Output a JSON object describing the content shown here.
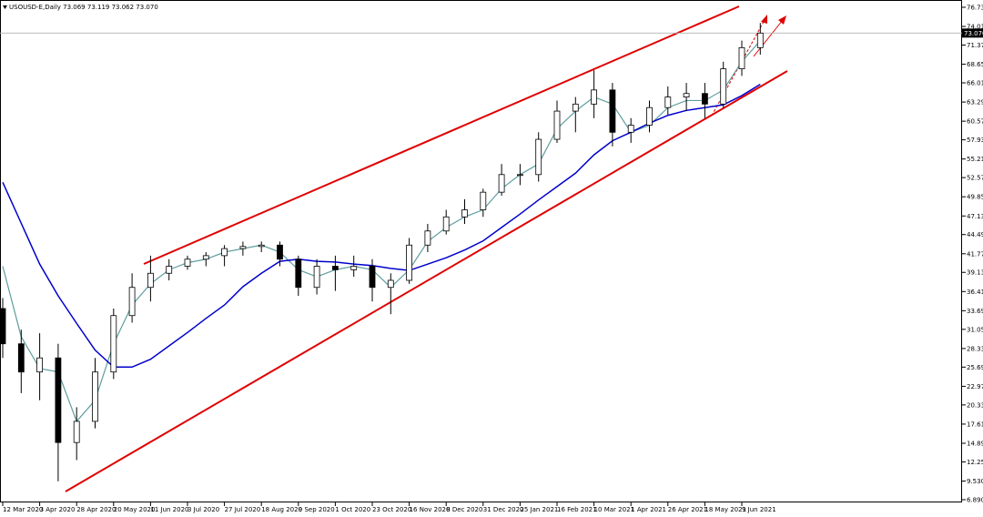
{
  "chart_data": {
    "type": "candlestick",
    "title": "USOUSD-E,Daily  73.069 73.119 73.062 73.070",
    "categories": [
      "12 Mar 2020",
      null,
      "3 Apr 2020",
      null,
      "28 Apr 2020",
      null,
      "20 May 2020",
      null,
      "11 Jun 2020",
      null,
      "3 Jul 2020",
      null,
      "27 Jul 2020",
      null,
      "18 Aug 2020",
      null,
      "9 Sep 2020",
      null,
      "1 Oct 2020",
      null,
      "23 Oct 2020",
      null,
      "16 Nov 2020",
      null,
      "8 Dec 2020",
      null,
      "31 Dec 2020",
      null,
      "25 Jan 2021",
      null,
      "16 Feb 2021",
      null,
      "10 Mar 2021",
      null,
      "1 Apr 2021",
      null,
      "26 Apr 2021",
      null,
      "18 May 2021",
      null,
      "9 Jun 2021",
      null
    ],
    "open": [
      34,
      29,
      25,
      27,
      15,
      18,
      25,
      33,
      37,
      39,
      40,
      41,
      41.5,
      42.5,
      42.8,
      43,
      41,
      37,
      40,
      39.5,
      40,
      37,
      38,
      43,
      45,
      47,
      48,
      50.5,
      53,
      53,
      58,
      62,
      63,
      65,
      59,
      60,
      62.5,
      64,
      64.5,
      63,
      68,
      71
    ],
    "high": [
      35.5,
      31,
      30.5,
      29,
      20,
      27,
      34,
      39,
      41.5,
      41,
      41.5,
      42,
      43,
      43.5,
      43.5,
      43.5,
      41.5,
      41,
      41.5,
      41.5,
      41,
      39,
      44,
      46,
      48,
      49.5,
      51,
      54.5,
      54.5,
      59,
      63.5,
      64,
      67.8,
      66,
      61,
      63.5,
      65.5,
      66,
      66,
      69,
      72,
      74.5
    ],
    "low": [
      27,
      22,
      21,
      9.5,
      12.5,
      17,
      24,
      32,
      35,
      38,
      39.5,
      40,
      40,
      41.5,
      42,
      40,
      35.8,
      36,
      36.5,
      38.5,
      35,
      33.2,
      37.5,
      42,
      44.5,
      46,
      47,
      50,
      51.5,
      52,
      57.5,
      59,
      61,
      57,
      57.5,
      59,
      61.5,
      62,
      61,
      62.5,
      67,
      70
    ],
    "close": [
      29,
      25,
      27,
      15,
      18,
      25,
      33,
      37,
      39,
      40,
      41,
      41.5,
      42.5,
      42.8,
      43,
      41,
      37,
      40,
      39.5,
      40,
      37,
      38,
      43,
      45,
      47,
      48,
      50.5,
      53,
      53,
      58,
      62,
      63,
      65,
      59,
      60,
      62.5,
      64,
      64.5,
      63,
      68,
      71,
      73.07
    ],
    "up_color": "#ffffff",
    "down_color": "#000000",
    "candle_color": "#000000",
    "moving_averages": [
      {
        "color": "#5f9ea0",
        "values": [
          40,
          30,
          25.5,
          25,
          18,
          21,
          29,
          34.5,
          37.5,
          39.5,
          40.5,
          41,
          42,
          42.5,
          43,
          42,
          39.5,
          38.5,
          39.5,
          40,
          39.5,
          37,
          39.5,
          43.5,
          45.5,
          47,
          48,
          51,
          53,
          54.5,
          59.5,
          62,
          64,
          63,
          59,
          60,
          62.5,
          63.5,
          63.5,
          65,
          69,
          72
        ]
      },
      {
        "color": "#0000cc",
        "values": [
          51.9,
          46.1,
          40.3,
          35.8,
          31.9,
          28.1,
          25.7,
          25.7,
          26.8,
          28.7,
          30.6,
          32.6,
          34.5,
          37.1,
          39,
          40.7,
          41,
          40.7,
          40.6,
          40.3,
          40.1,
          39.7,
          39.4,
          40.3,
          41.2,
          42.3,
          43.6,
          45.5,
          47.4,
          49.4,
          51.3,
          53.2,
          55.8,
          57.8,
          59,
          60.3,
          61.4,
          62.1,
          62.5,
          62.9,
          64.2,
          65.8
        ]
      }
    ],
    "ylim": [
      6.5,
      77.76
    ],
    "yticks": [
      {
        "value": 76.73,
        "label": "76.730"
      },
      {
        "value": 74.01,
        "label": "74.010"
      },
      {
        "value": 71.37,
        "label": "71.370"
      },
      {
        "value": 68.65,
        "label": "68.650"
      },
      {
        "value": 66.01,
        "label": "66.010"
      },
      {
        "value": 63.29,
        "label": "63.290"
      },
      {
        "value": 60.57,
        "label": "60.570"
      },
      {
        "value": 57.93,
        "label": "57.930"
      },
      {
        "value": 55.21,
        "label": "55.210"
      },
      {
        "value": 52.57,
        "label": "52.570"
      },
      {
        "value": 49.85,
        "label": "49.850"
      },
      {
        "value": 47.13,
        "label": "47.130"
      },
      {
        "value": 44.49,
        "label": "44.490"
      },
      {
        "value": 41.77,
        "label": "41.770"
      },
      {
        "value": 39.13,
        "label": "39.130"
      },
      {
        "value": 36.41,
        "label": "36.410"
      },
      {
        "value": 33.69,
        "label": "33.690"
      },
      {
        "value": 31.05,
        "label": "31.050"
      },
      {
        "value": 28.33,
        "label": "28.330"
      },
      {
        "value": 25.69,
        "label": "25.690"
      },
      {
        "value": 22.97,
        "label": "22.970"
      },
      {
        "value": 20.33,
        "label": "20.330"
      },
      {
        "value": 17.61,
        "label": "17.610"
      },
      {
        "value": 14.89,
        "label": "14.890"
      },
      {
        "value": 12.25,
        "label": "12.250"
      },
      {
        "value": 9.53,
        "label": "9.530"
      },
      {
        "value": 6.89,
        "label": "6.890"
      }
    ],
    "last_price": {
      "value": 73.07,
      "label": "73.070"
    }
  }
}
